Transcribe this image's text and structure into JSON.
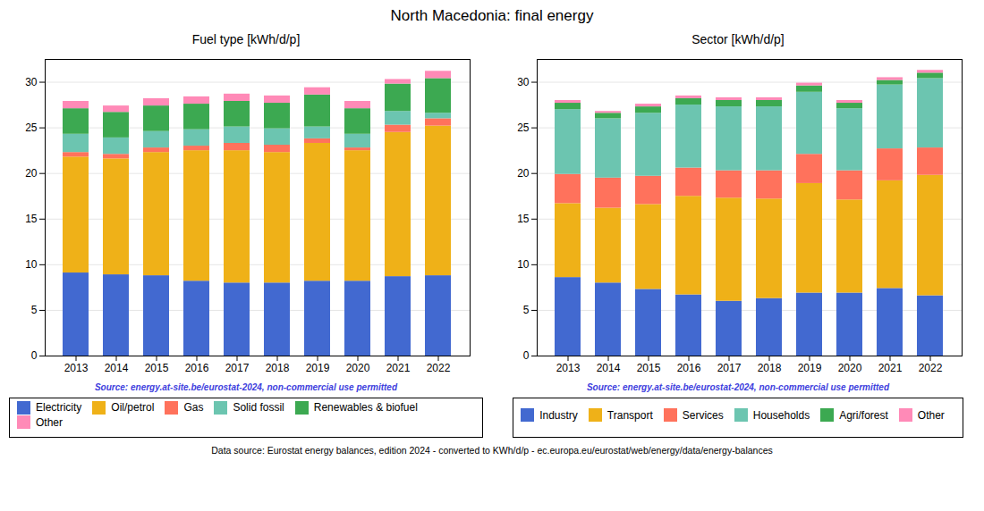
{
  "title": "North Macedonia: final energy",
  "annotations": [
    "Data source: Eurostat energy balances, edition 2024 - converted to KWh/d/p - ec.europa.eu/eurostat/web/energy/data/energy-balances"
  ],
  "chart_data": [
    {
      "type": "bar",
      "stacked": true,
      "title": "Fuel type [kWh/d/p]",
      "categories": [
        2013,
        2014,
        2015,
        2016,
        2017,
        2018,
        2019,
        2020,
        2021,
        2022
      ],
      "series": [
        {
          "name": "Electricity",
          "values": [
            9.1,
            8.9,
            8.8,
            8.2,
            8.0,
            8.0,
            8.2,
            8.2,
            8.7,
            8.8
          ]
        },
        {
          "name": "Oil/petrol",
          "values": [
            12.7,
            12.7,
            13.5,
            14.3,
            14.5,
            14.3,
            15.1,
            14.3,
            15.8,
            16.4
          ]
        },
        {
          "name": "Gas",
          "values": [
            0.5,
            0.5,
            0.5,
            0.5,
            0.8,
            0.8,
            0.5,
            0.3,
            0.8,
            0.8
          ]
        },
        {
          "name": "Solid fossil",
          "values": [
            2.0,
            1.8,
            1.8,
            1.8,
            1.8,
            1.8,
            1.3,
            1.5,
            1.5,
            0.6
          ]
        },
        {
          "name": "Renewables & biofuel",
          "values": [
            2.8,
            2.8,
            2.8,
            2.8,
            2.8,
            2.8,
            3.5,
            2.8,
            3.0,
            3.8
          ]
        },
        {
          "name": "Other",
          "values": [
            0.8,
            0.7,
            0.8,
            0.8,
            0.8,
            0.8,
            0.8,
            0.8,
            0.5,
            0.8
          ]
        }
      ],
      "ylim": [
        0,
        32.5
      ],
      "yticks": [
        0,
        5,
        10,
        15,
        20,
        25,
        30
      ],
      "grid": true,
      "legend": "bottom",
      "annotations": [
        {
          "text": "Source: energy.at-site.be/eurostat-2024, non-commercial use permitted",
          "color": "#4040dd"
        }
      ]
    },
    {
      "type": "bar",
      "stacked": true,
      "title": "Sector [kWh/d/p]",
      "categories": [
        2013,
        2014,
        2015,
        2016,
        2017,
        2018,
        2019,
        2020,
        2021,
        2022
      ],
      "series": [
        {
          "name": "Industry",
          "values": [
            8.6,
            8.0,
            7.3,
            6.7,
            6.0,
            6.3,
            6.9,
            6.9,
            7.4,
            6.6
          ]
        },
        {
          "name": "Transport",
          "values": [
            8.1,
            8.2,
            9.3,
            10.8,
            11.3,
            10.9,
            12.0,
            10.2,
            11.8,
            13.2
          ]
        },
        {
          "name": "Services",
          "values": [
            3.2,
            3.3,
            3.1,
            3.1,
            3.0,
            3.1,
            3.2,
            3.2,
            3.5,
            3.0
          ]
        },
        {
          "name": "Households",
          "values": [
            7.1,
            6.5,
            6.9,
            6.9,
            7.0,
            7.0,
            6.8,
            6.8,
            7.0,
            7.6
          ]
        },
        {
          "name": "Agri/forest",
          "values": [
            0.7,
            0.6,
            0.7,
            0.7,
            0.7,
            0.7,
            0.7,
            0.6,
            0.5,
            0.6
          ]
        },
        {
          "name": "Other",
          "values": [
            0.3,
            0.2,
            0.3,
            0.3,
            0.3,
            0.3,
            0.3,
            0.3,
            0.3,
            0.3
          ]
        }
      ],
      "ylim": [
        0,
        32.5
      ],
      "yticks": [
        0,
        5,
        10,
        15,
        20,
        25,
        30
      ],
      "grid": true,
      "legend": "bottom",
      "annotations": [
        {
          "text": "Source: energy.at-site.be/eurostat-2024, non-commercial use permitted",
          "color": "#4040dd"
        }
      ]
    }
  ]
}
